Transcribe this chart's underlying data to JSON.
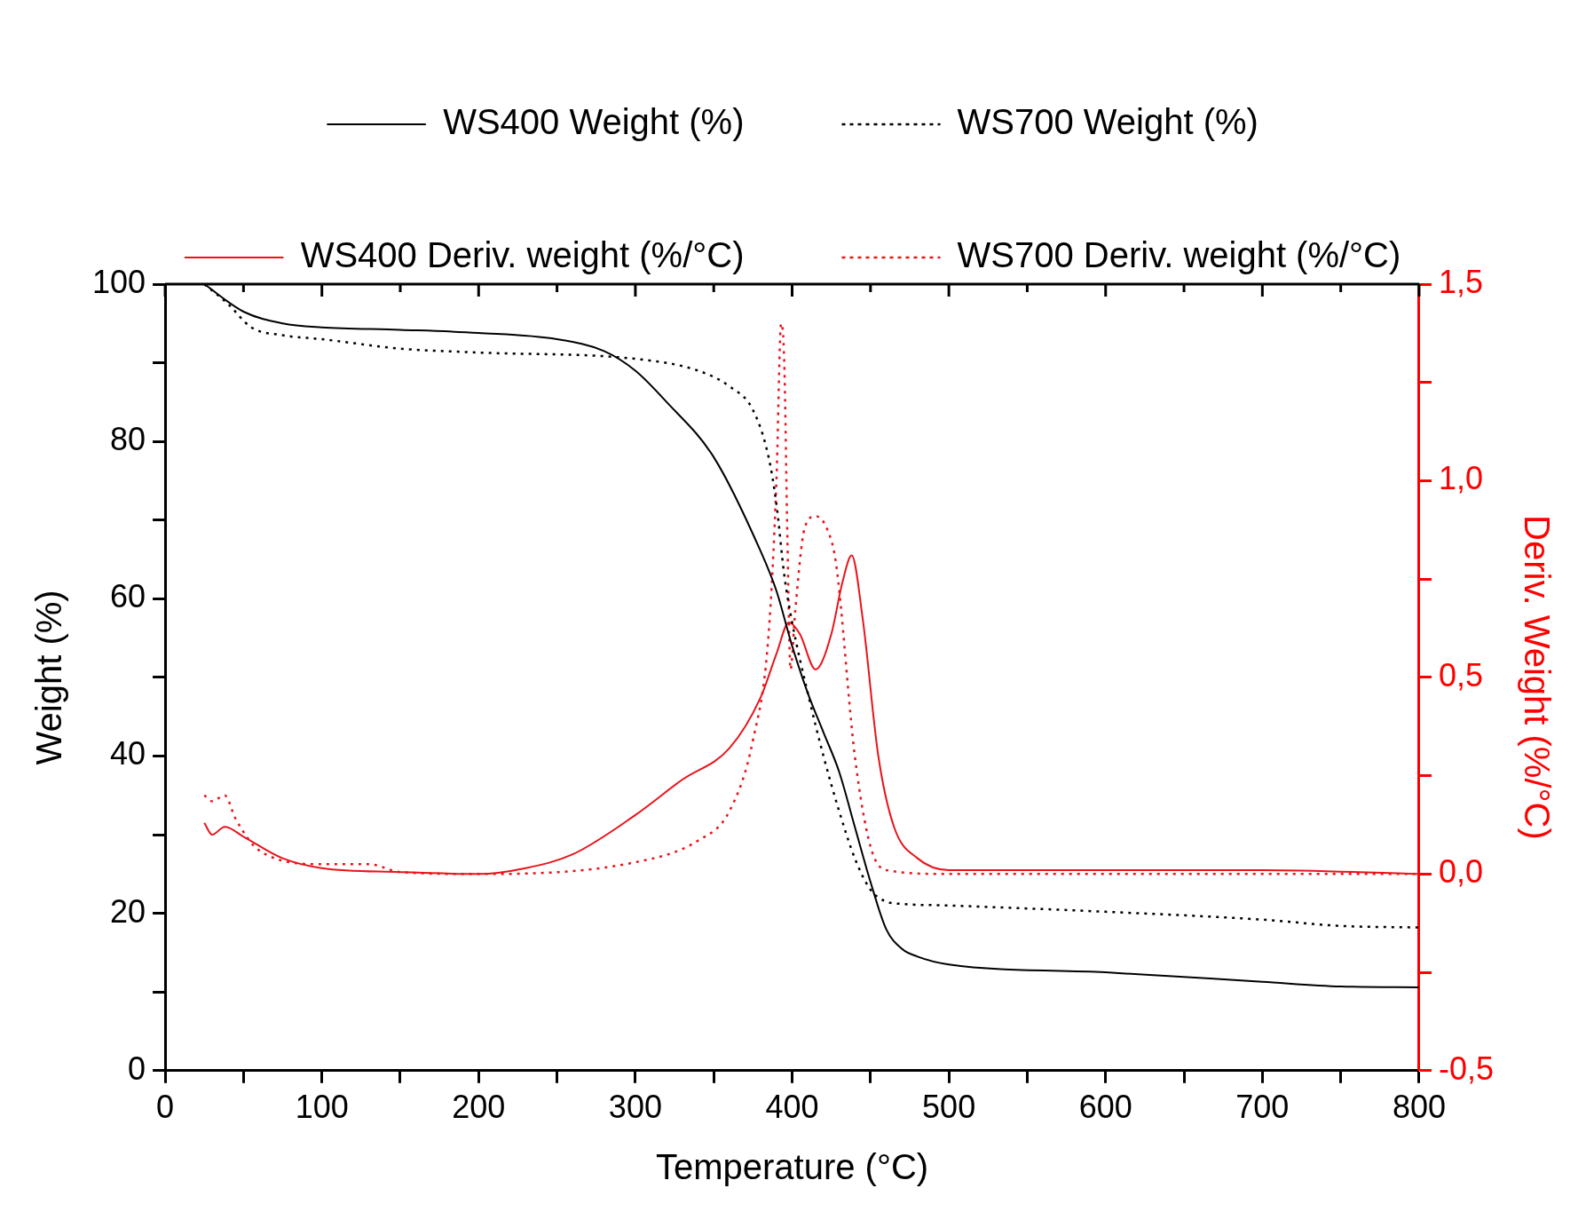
{
  "chart_data": {
    "type": "line",
    "xlabel": "Temperature (°C)",
    "ylabel": "Weight (%)",
    "y2label": "Deriv. Weight (%/°C)",
    "xlim": [
      0,
      800
    ],
    "xticks": [
      0,
      {
        "value": 50,
        "label": null
      },
      100,
      {
        "value": 150,
        "label": null
      },
      200,
      {
        "value": 250,
        "label": null
      },
      300,
      {
        "value": 350,
        "label": null
      },
      400,
      {
        "value": 450,
        "label": null
      },
      500,
      {
        "value": 550,
        "label": null
      },
      600,
      {
        "value": 650,
        "label": null
      },
      700,
      {
        "value": 750,
        "label": null
      },
      800
    ],
    "ylim": [
      0,
      100
    ],
    "yticks": [
      0,
      {
        "value": 10,
        "label": null
      },
      20,
      {
        "value": 30,
        "label": null
      },
      40,
      {
        "value": 50,
        "label": null
      },
      60,
      {
        "value": 70,
        "label": null
      },
      80,
      {
        "value": 90,
        "label": null
      },
      100
    ],
    "y2lim": [
      -0.5,
      1.5
    ],
    "y2ticks": [
      {
        "value": -0.5,
        "label": "-0,5"
      },
      {
        "value": -0.25,
        "label": null
      },
      {
        "value": 0,
        "label": "0,0"
      },
      {
        "value": 0.25,
        "label": null
      },
      {
        "value": 0.5,
        "label": "0,5"
      },
      {
        "value": 0.75,
        "label": null
      },
      {
        "value": 1,
        "label": "1,0"
      },
      {
        "value": 1.25,
        "label": null
      },
      {
        "value": 1.5,
        "label": "1,5"
      }
    ],
    "grid": false,
    "legend": "top",
    "marker": "none",
    "series": [
      {
        "name": "WS400 Weight (%)",
        "color": "#000000",
        "line_style": "solid",
        "x": [
          25,
          50,
          75,
          100,
          150,
          200,
          250,
          280,
          300,
          320,
          350,
          380,
          390,
          400,
          410,
          420,
          430,
          440,
          450,
          460,
          470,
          480,
          500,
          600,
          700,
          750,
          800
        ],
        "values": [
          100,
          96.5,
          95,
          94.5,
          94.2,
          93.8,
          93,
          91.5,
          89,
          85,
          78,
          66,
          61,
          54,
          48,
          43,
          38,
          31,
          24,
          18,
          15.5,
          14.5,
          13.5,
          12.5,
          11.3,
          10.7,
          10.6
        ]
      },
      {
        "name": "WS700 Weight (%)",
        "color": "#000000",
        "line_style": "dotted",
        "x": [
          25,
          40,
          55,
          75,
          100,
          150,
          200,
          300,
          340,
          360,
          375,
          385,
          390,
          395,
          400,
          410,
          420,
          430,
          440,
          450,
          460,
          470,
          500,
          600,
          700,
          750,
          800
        ],
        "values": [
          100,
          97.5,
          94.5,
          93.5,
          93,
          91.8,
          91.3,
          90.5,
          89,
          87,
          84,
          78,
          72,
          63,
          57,
          48,
          40,
          33,
          27,
          23,
          21.5,
          21.2,
          21,
          20.2,
          19.2,
          18.4,
          18.2
        ]
      },
      {
        "name": "WS400 Deriv. weight (%/°C)",
        "color": "#e8141b",
        "line_style": "solid",
        "axis": "y2",
        "x": [
          25,
          30,
          38,
          50,
          75,
          100,
          150,
          200,
          230,
          260,
          300,
          330,
          360,
          380,
          390,
          398,
          405,
          415,
          425,
          432,
          438,
          445,
          455,
          465,
          480,
          500,
          600,
          700,
          800
        ],
        "values": [
          0.13,
          0.1,
          0.12,
          0.095,
          0.04,
          0.015,
          0.005,
          0,
          0.015,
          0.05,
          0.15,
          0.24,
          0.32,
          0.45,
          0.56,
          0.64,
          0.61,
          0.52,
          0.61,
          0.74,
          0.81,
          0.65,
          0.3,
          0.12,
          0.04,
          0.01,
          0.01,
          0.01,
          0
        ]
      },
      {
        "name": "WS700 Deriv. weight (%/°C)",
        "color": "#e8141b",
        "line_style": "dotted",
        "axis": "y2",
        "x": [
          25,
          30,
          38,
          45,
          60,
          100,
          130,
          150,
          200,
          300,
          340,
          360,
          375,
          385,
          390,
          393,
          395,
          397,
          399,
          402,
          408,
          415,
          422,
          428,
          440,
          450,
          460,
          500,
          800
        ],
        "values": [
          0.2,
          0.185,
          0.2,
          0.14,
          0.06,
          0.025,
          0.025,
          0.005,
          0,
          0.03,
          0.085,
          0.16,
          0.34,
          0.61,
          1.0,
          1.4,
          1.3,
          0.85,
          0.52,
          0.67,
          0.88,
          0.91,
          0.88,
          0.79,
          0.3,
          0.07,
          0.01,
          0,
          0
        ]
      }
    ]
  }
}
